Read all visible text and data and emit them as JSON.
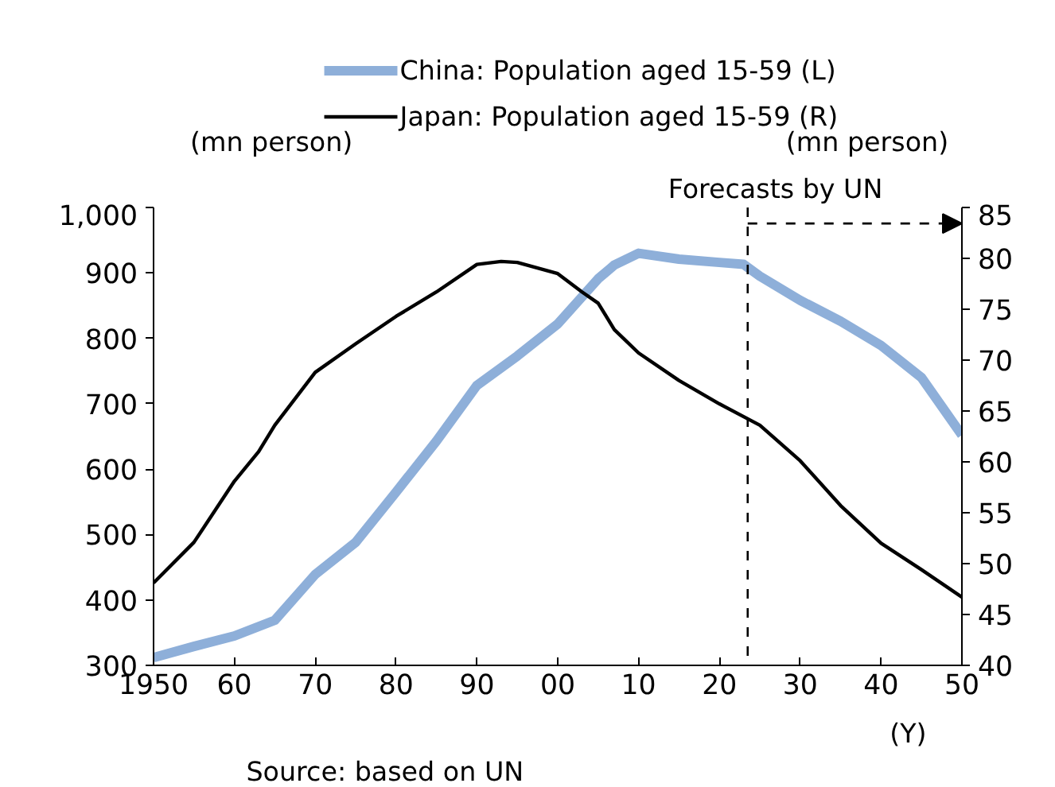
{
  "chart_data": {
    "type": "line",
    "xlabel": "(Y)",
    "ylabel": "(mn person)",
    "y2label": "(mn person)",
    "xlim": [
      1950,
      2050
    ],
    "xticks": [
      {
        "value": 1950,
        "label": "1950"
      },
      {
        "value": 1960,
        "label": "60"
      },
      {
        "value": 1970,
        "label": "70"
      },
      {
        "value": 1980,
        "label": "80"
      },
      {
        "value": 1990,
        "label": "90"
      },
      {
        "value": 2000,
        "label": "00"
      },
      {
        "value": 2010,
        "label": "10"
      },
      {
        "value": 2020,
        "label": "20"
      },
      {
        "value": 2030,
        "label": "30"
      },
      {
        "value": 2040,
        "label": "40"
      },
      {
        "value": 2050,
        "label": "50"
      }
    ],
    "ylim": [
      300,
      1000
    ],
    "yticks": [
      300,
      400,
      500,
      600,
      700,
      800,
      900,
      {
        "value": 1000,
        "label": "1,000"
      }
    ],
    "y2lim": [
      40,
      85
    ],
    "y2ticks": [
      40,
      45,
      50,
      55,
      60,
      65,
      70,
      75,
      80,
      85
    ],
    "grid": false,
    "legend": "top",
    "marker": "none",
    "series": [
      {
        "name": "China: Population aged 15-59 (L)",
        "color": "#8eafd9",
        "x": [
          1950,
          1955,
          1960,
          1965,
          1970,
          1975,
          1980,
          1985,
          1990,
          1995,
          2000,
          2005,
          2007,
          2010,
          2015,
          2020,
          2023,
          2025,
          2030,
          2035,
          2040,
          2045,
          2050
        ],
        "values": [
          312,
          329,
          345,
          369,
          439,
          488,
          565,
          643,
          728,
          773,
          822,
          891,
          912,
          930,
          921,
          916,
          913,
          895,
          858,
          826,
          789,
          740,
          652
        ]
      },
      {
        "name": "Japan: Population aged 15-59 (R)",
        "color": "#000000",
        "axis": "y2",
        "x": [
          1950,
          1955,
          1960,
          1963,
          1965,
          1970,
          1975,
          1980,
          1985,
          1990,
          1993,
          1995,
          2000,
          2003,
          2005,
          2007,
          2010,
          2015,
          2020,
          2025,
          2030,
          2035,
          2040,
          2045,
          2050
        ],
        "values": [
          48.1,
          52.1,
          58.1,
          61.0,
          63.6,
          68.8,
          71.6,
          74.3,
          76.7,
          79.4,
          79.7,
          79.6,
          78.5,
          76.7,
          75.6,
          73.0,
          70.7,
          68.0,
          65.7,
          63.6,
          60.1,
          55.7,
          52.0,
          49.4,
          46.7
        ]
      }
    ],
    "ref_lines": [
      {
        "axis": "x",
        "value": 2023.5,
        "label": "Forecasts by UN",
        "line_style": "dashed",
        "color": "#000000"
      }
    ],
    "annotations": [
      "Source: based on UN"
    ]
  }
}
